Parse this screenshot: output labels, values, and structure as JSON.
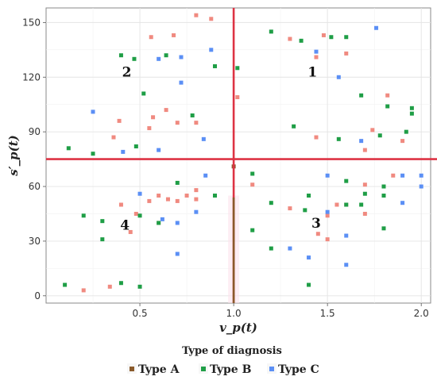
{
  "chart_data": {
    "type": "scatter",
    "xlabel": "v_p(t)",
    "ylabel": "s′_p(t)",
    "xlim": [
      0.0,
      2.05
    ],
    "ylim": [
      -4,
      158
    ],
    "x_ticks": [
      0.5,
      1.0,
      1.5,
      2.0
    ],
    "x_tick_labels": [
      "0.5",
      "1.0",
      "1.5",
      "2.0"
    ],
    "y_ticks": [
      0,
      30,
      60,
      90,
      120,
      150
    ],
    "y_tick_labels": [
      "0",
      "30",
      "60",
      "90",
      "120",
      "150"
    ],
    "grid": true,
    "threshold_lines": {
      "x": 1.0,
      "y": 75,
      "color": "#dd3344"
    },
    "quadrant_labels": [
      {
        "text": "1",
        "x": 1.42,
        "y": 123
      },
      {
        "text": "2",
        "x": 0.43,
        "y": 123
      },
      {
        "text": "3",
        "x": 1.44,
        "y": 40
      },
      {
        "text": "4",
        "x": 0.42,
        "y": 39
      }
    ],
    "legend": {
      "title": "Type of diagnosis",
      "position": "bottom",
      "entries": [
        "Type A",
        "Type B",
        "Type C"
      ]
    },
    "series": [
      {
        "name": "Type A",
        "color": "#f08a80",
        "points": [
          [
            0.2,
            3
          ],
          [
            0.34,
            5
          ],
          [
            0.4,
            50
          ],
          [
            0.45,
            35
          ],
          [
            0.48,
            45
          ],
          [
            0.55,
            52
          ],
          [
            0.6,
            55
          ],
          [
            0.65,
            53
          ],
          [
            0.7,
            52
          ],
          [
            0.75,
            55
          ],
          [
            0.8,
            53
          ],
          [
            1.1,
            61
          ],
          [
            1.3,
            48
          ],
          [
            1.45,
            34
          ],
          [
            1.5,
            44
          ],
          [
            1.5,
            31
          ],
          [
            1.55,
            50
          ],
          [
            1.6,
            50
          ],
          [
            1.7,
            61
          ],
          [
            1.7,
            45
          ],
          [
            1.85,
            66
          ],
          [
            1.9,
            85
          ],
          [
            1.7,
            80
          ],
          [
            1.74,
            91
          ],
          [
            1.82,
            110
          ],
          [
            1.44,
            87
          ],
          [
            1.6,
            133
          ],
          [
            1.44,
            131
          ],
          [
            1.48,
            143
          ],
          [
            1.3,
            141
          ],
          [
            1.02,
            109
          ],
          [
            0.36,
            87
          ],
          [
            0.39,
            96
          ],
          [
            0.55,
            92
          ],
          [
            0.57,
            98
          ],
          [
            0.64,
            102
          ],
          [
            0.7,
            95
          ],
          [
            0.8,
            95
          ],
          [
            0.56,
            142
          ],
          [
            0.68,
            143
          ],
          [
            0.8,
            154
          ],
          [
            0.88,
            152
          ],
          [
            0.6,
            40
          ],
          [
            0.8,
            58
          ]
        ]
      },
      {
        "name": "Type B",
        "color": "#1f9e46",
        "points": [
          [
            0.12,
            81
          ],
          [
            0.25,
            78
          ],
          [
            0.48,
            82
          ],
          [
            0.4,
            132
          ],
          [
            0.47,
            130
          ],
          [
            0.52,
            111
          ],
          [
            0.64,
            132
          ],
          [
            0.78,
            99
          ],
          [
            0.9,
            126
          ],
          [
            1.02,
            125
          ],
          [
            1.2,
            145
          ],
          [
            1.36,
            140
          ],
          [
            1.52,
            142
          ],
          [
            1.6,
            142
          ],
          [
            1.68,
            110
          ],
          [
            1.82,
            104
          ],
          [
            1.95,
            103
          ],
          [
            1.95,
            100
          ],
          [
            1.92,
            90
          ],
          [
            1.78,
            88
          ],
          [
            1.56,
            86
          ],
          [
            1.32,
            93
          ],
          [
            1.1,
            67
          ],
          [
            1.7,
            56
          ],
          [
            1.8,
            60
          ],
          [
            1.8,
            55
          ],
          [
            1.6,
            63
          ],
          [
            1.6,
            50
          ],
          [
            1.38,
            47
          ],
          [
            1.4,
            55
          ],
          [
            1.2,
            51
          ],
          [
            1.2,
            26
          ],
          [
            1.1,
            36
          ],
          [
            1.4,
            6
          ],
          [
            1.8,
            37
          ],
          [
            0.3,
            41
          ],
          [
            0.3,
            31
          ],
          [
            0.2,
            44
          ],
          [
            0.1,
            6
          ],
          [
            0.4,
            7
          ],
          [
            0.5,
            5
          ],
          [
            0.5,
            44
          ],
          [
            0.6,
            40
          ],
          [
            0.7,
            62
          ],
          [
            0.9,
            55
          ],
          [
            1.68,
            50
          ]
        ]
      },
      {
        "name": "Type C",
        "color": "#5b8ff5",
        "points": [
          [
            0.25,
            101
          ],
          [
            0.41,
            79
          ],
          [
            0.6,
            80
          ],
          [
            0.6,
            130
          ],
          [
            0.72,
            131
          ],
          [
            0.72,
            117
          ],
          [
            0.84,
            86
          ],
          [
            0.88,
            135
          ],
          [
            1.44,
            134
          ],
          [
            1.56,
            120
          ],
          [
            1.76,
            147
          ],
          [
            1.68,
            85
          ],
          [
            1.5,
            66
          ],
          [
            1.5,
            46
          ],
          [
            1.6,
            33
          ],
          [
            1.6,
            17
          ],
          [
            1.4,
            21
          ],
          [
            1.3,
            26
          ],
          [
            1.9,
            66
          ],
          [
            1.9,
            51
          ],
          [
            2.0,
            66
          ],
          [
            2.0,
            60
          ],
          [
            0.5,
            56
          ],
          [
            0.62,
            42
          ],
          [
            0.7,
            40
          ],
          [
            0.7,
            23
          ],
          [
            0.8,
            46
          ],
          [
            0.85,
            66
          ]
        ]
      },
      {
        "name": "",
        "color": "#8a5a2b",
        "points": [
          [
            1.0,
            71
          ]
        ]
      }
    ]
  }
}
